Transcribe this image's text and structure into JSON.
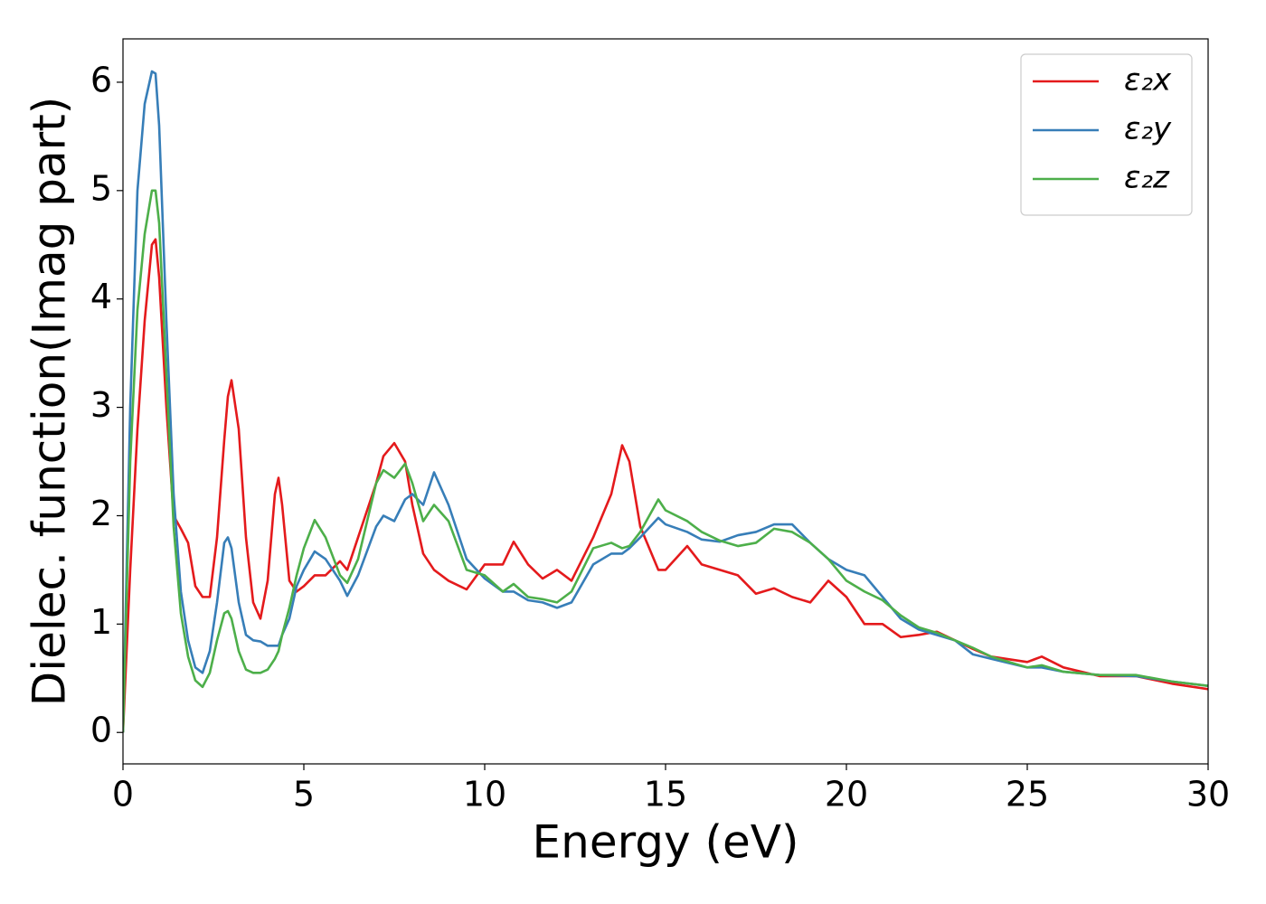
{
  "chart_data": {
    "type": "line",
    "xlabel": "Energy (eV)",
    "ylabel": "Dielec. function(Imag part)",
    "x": [
      0,
      0.2,
      0.4,
      0.6,
      0.8,
      0.9,
      1.0,
      1.2,
      1.4,
      1.6,
      1.8,
      2.0,
      2.2,
      2.4,
      2.6,
      2.8,
      2.9,
      3.0,
      3.2,
      3.4,
      3.6,
      3.8,
      4.0,
      4.2,
      4.3,
      4.4,
      4.6,
      4.8,
      5.0,
      5.3,
      5.6,
      6.0,
      6.2,
      6.5,
      7.0,
      7.2,
      7.5,
      7.8,
      8.0,
      8.3,
      8.6,
      9.0,
      9.5,
      10.0,
      10.5,
      10.8,
      11.2,
      11.6,
      12.0,
      12.4,
      13.0,
      13.5,
      13.8,
      14.0,
      14.3,
      14.8,
      15.0,
      15.6,
      16.0,
      16.5,
      17.0,
      17.5,
      18.0,
      18.5,
      19.0,
      19.5,
      20.0,
      20.5,
      21.0,
      21.5,
      22.0,
      22.5,
      23.0,
      23.5,
      24.0,
      25.0,
      25.4,
      26.0,
      27.0,
      28.0,
      29.0,
      30.0
    ],
    "series": [
      {
        "name": "ε₂x",
        "color": "#e41a1c",
        "values": [
          0,
          1.5,
          2.8,
          3.8,
          4.5,
          4.55,
          4.2,
          3.0,
          2.0,
          1.88,
          1.75,
          1.35,
          1.25,
          1.25,
          1.8,
          2.7,
          3.1,
          3.25,
          2.8,
          1.8,
          1.2,
          1.05,
          1.4,
          2.2,
          2.35,
          2.1,
          1.4,
          1.3,
          1.35,
          1.45,
          1.45,
          1.58,
          1.5,
          1.8,
          2.3,
          2.55,
          2.67,
          2.5,
          2.1,
          1.65,
          1.5,
          1.4,
          1.32,
          1.55,
          1.55,
          1.76,
          1.55,
          1.42,
          1.5,
          1.4,
          1.8,
          2.2,
          2.65,
          2.5,
          1.9,
          1.5,
          1.5,
          1.72,
          1.55,
          1.5,
          1.45,
          1.28,
          1.33,
          1.25,
          1.2,
          1.4,
          1.25,
          1.0,
          1.0,
          0.88,
          0.9,
          0.93,
          0.85,
          0.77,
          0.7,
          0.65,
          0.7,
          0.6,
          0.52,
          0.52,
          0.45,
          0.4
        ]
      },
      {
        "name": "ε₂y",
        "color": "#377eb8",
        "values": [
          0,
          3,
          5.0,
          5.8,
          6.1,
          6.08,
          5.6,
          3.8,
          2.2,
          1.3,
          0.85,
          0.6,
          0.55,
          0.75,
          1.2,
          1.75,
          1.8,
          1.7,
          1.2,
          0.9,
          0.85,
          0.84,
          0.8,
          0.8,
          0.8,
          0.9,
          1.05,
          1.35,
          1.5,
          1.67,
          1.6,
          1.4,
          1.26,
          1.45,
          1.9,
          2.0,
          1.95,
          2.15,
          2.2,
          2.1,
          2.4,
          2.1,
          1.6,
          1.42,
          1.3,
          1.3,
          1.22,
          1.2,
          1.15,
          1.2,
          1.55,
          1.65,
          1.65,
          1.7,
          1.8,
          1.98,
          1.92,
          1.85,
          1.78,
          1.76,
          1.82,
          1.85,
          1.92,
          1.92,
          1.75,
          1.6,
          1.5,
          1.45,
          1.25,
          1.05,
          0.95,
          0.9,
          0.85,
          0.72,
          0.68,
          0.6,
          0.6,
          0.56,
          0.53,
          0.52,
          0.47,
          0.43
        ]
      },
      {
        "name": "ε₂z",
        "color": "#4daf4a",
        "values": [
          0,
          2.5,
          3.9,
          4.6,
          5.0,
          5.0,
          4.7,
          3.3,
          1.9,
          1.1,
          0.7,
          0.48,
          0.42,
          0.55,
          0.85,
          1.1,
          1.12,
          1.05,
          0.75,
          0.58,
          0.55,
          0.55,
          0.58,
          0.68,
          0.75,
          0.9,
          1.15,
          1.45,
          1.7,
          1.96,
          1.8,
          1.45,
          1.38,
          1.6,
          2.3,
          2.42,
          2.35,
          2.48,
          2.3,
          1.95,
          2.1,
          1.95,
          1.5,
          1.45,
          1.3,
          1.37,
          1.25,
          1.23,
          1.2,
          1.3,
          1.7,
          1.75,
          1.7,
          1.72,
          1.85,
          2.15,
          2.05,
          1.95,
          1.85,
          1.77,
          1.72,
          1.75,
          1.88,
          1.85,
          1.75,
          1.6,
          1.4,
          1.3,
          1.22,
          1.08,
          0.97,
          0.92,
          0.85,
          0.78,
          0.7,
          0.6,
          0.62,
          0.56,
          0.53,
          0.53,
          0.47,
          0.43
        ]
      }
    ],
    "xlim": [
      0,
      30
    ],
    "xticks": [
      0,
      5,
      10,
      15,
      20,
      25,
      30
    ],
    "ylim": [
      -0.29,
      6.4
    ],
    "yticks": [
      0,
      1,
      2,
      3,
      4,
      5,
      6
    ],
    "grid": false,
    "legend": "upper right"
  }
}
